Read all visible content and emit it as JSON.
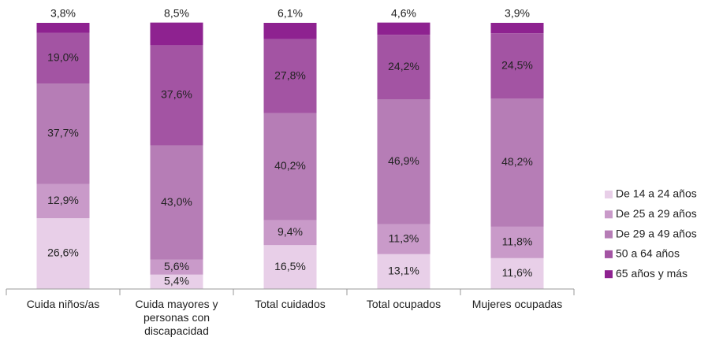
{
  "chart_data": {
    "type": "stacked_bar",
    "categories": [
      "Cuida niños/as",
      "Cuida mayores y personas con discapacidad",
      "Total cuidados",
      "Total ocupados",
      "Mujeres ocupadas"
    ],
    "ylim": [
      0,
      100
    ],
    "legend": "right",
    "series": [
      {
        "name": "De 14 a 24 años",
        "color": "#e8cfe8",
        "values": [
          26.6,
          5.4,
          16.5,
          13.1,
          11.6
        ],
        "value_labels": [
          "26,6%",
          "5,4%",
          "16,5%",
          "13,1%",
          "11,6%"
        ]
      },
      {
        "name": "De 25 a 29 años",
        "color": "#c99ac9",
        "values": [
          12.9,
          5.6,
          9.4,
          11.3,
          11.8
        ],
        "value_labels": [
          "12,9%",
          "5,6%",
          "9,4%",
          "11,3%",
          "11,8%"
        ]
      },
      {
        "name": "De 29 a 49 años",
        "color": "#b67db6",
        "values": [
          37.7,
          43.0,
          40.2,
          46.9,
          48.2
        ],
        "value_labels": [
          "37,7%",
          "43,0%",
          "40,2%",
          "46,9%",
          "48,2%"
        ]
      },
      {
        "name": "50 a 64 años",
        "color": "#a354a3",
        "values": [
          19.0,
          37.6,
          27.8,
          24.2,
          24.5
        ],
        "value_labels": [
          "19,0%",
          "37,6%",
          "27,8%",
          "24,2%",
          "24,5%"
        ]
      },
      {
        "name": "65 años y más",
        "color": "#8e2290",
        "values": [
          3.8,
          8.5,
          6.1,
          4.6,
          3.9
        ],
        "value_labels": [
          "3,8%",
          "8,5%",
          "6,1%",
          "4,6%",
          "3,9%"
        ]
      }
    ]
  }
}
